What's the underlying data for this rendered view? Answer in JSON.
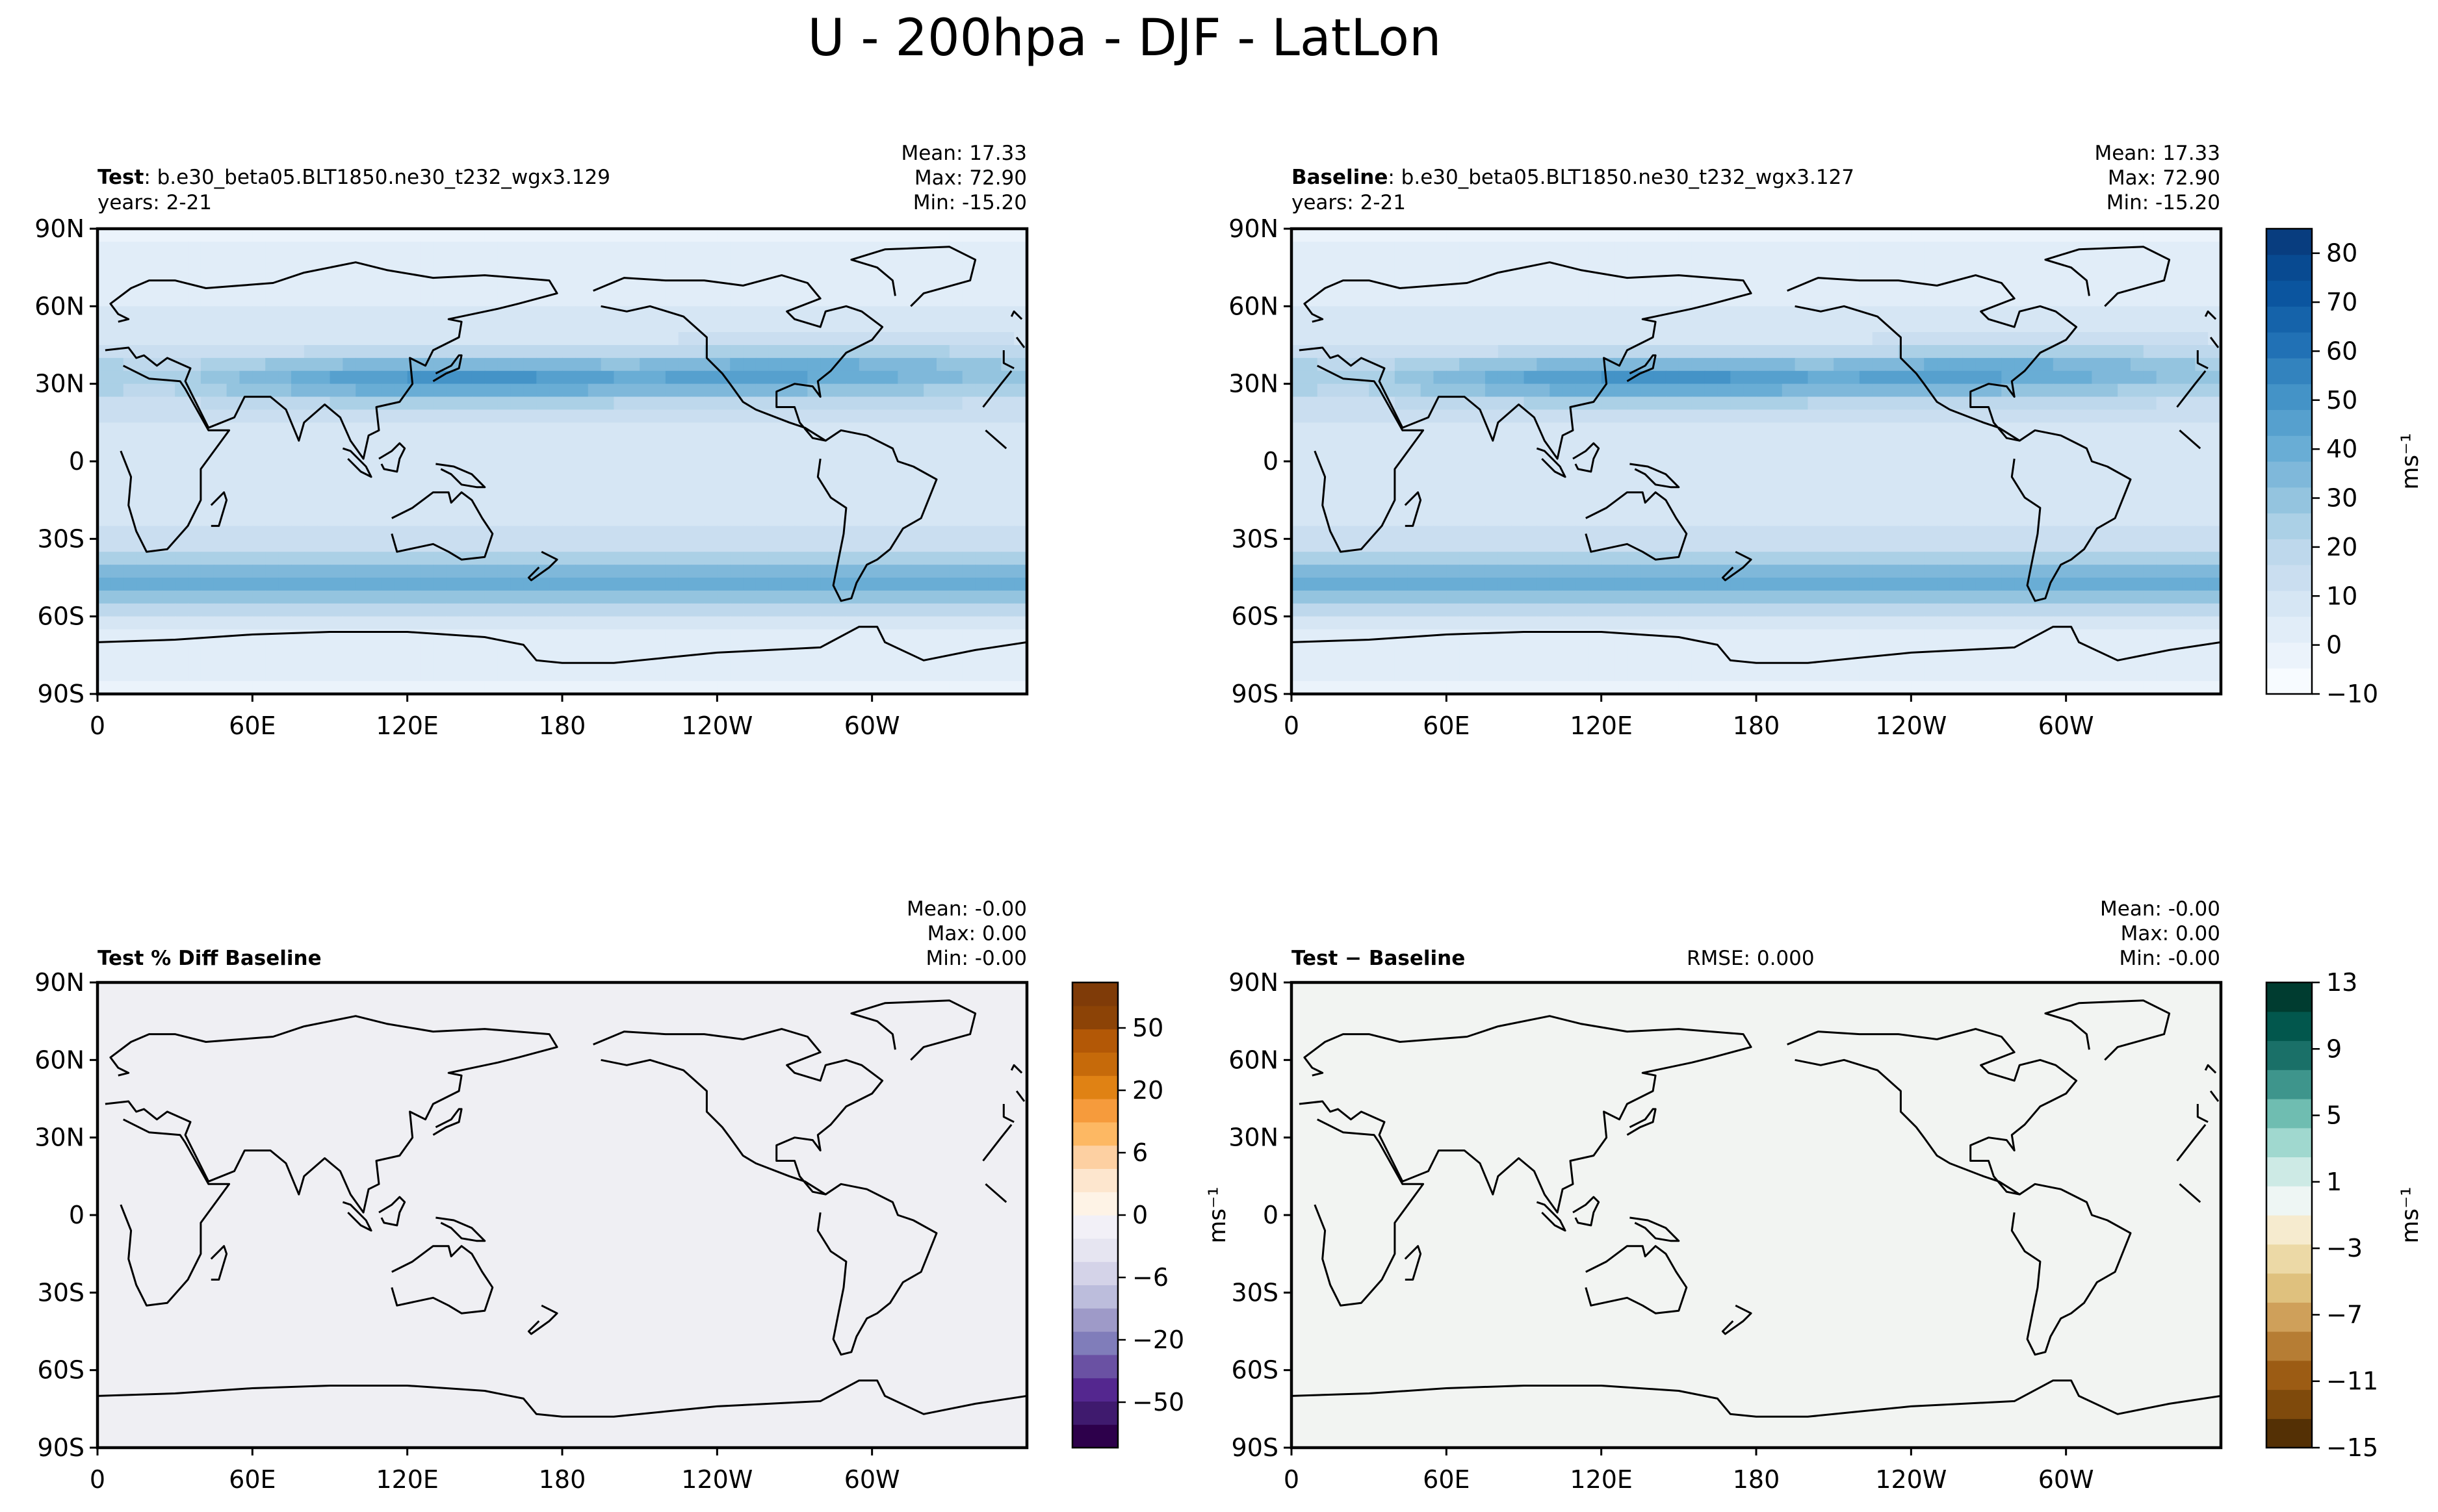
{
  "figure": {
    "title": "U - 200hpa - DJF - LatLon"
  },
  "chart_data": [
    {
      "type": "heatmap",
      "panel": "test",
      "title_bold": "Test",
      "title_rest": ": b.e30_beta05.BLT1850.ne30_t232_wgx3.129",
      "years": "years: 2-21",
      "stats": {
        "mean": "Mean: 17.33",
        "max": "Max: 72.90",
        "min": "Min: -15.20"
      },
      "x_ticks": [
        "0",
        "60E",
        "120E",
        "180",
        "120W",
        "60W"
      ],
      "y_ticks": [
        "90N",
        "60N",
        "30N",
        "0",
        "30S",
        "60S",
        "90S"
      ],
      "fill": "wind",
      "colormap": "Blues"
    },
    {
      "type": "heatmap",
      "panel": "baseline",
      "title_bold": "Baseline",
      "title_rest": ": b.e30_beta05.BLT1850.ne30_t232_wgx3.127",
      "years": "years: 2-21",
      "stats": {
        "mean": "Mean: 17.33",
        "max": "Max: 72.90",
        "min": "Min: -15.20"
      },
      "x_ticks": [
        "0",
        "60E",
        "120E",
        "180",
        "120W",
        "60W"
      ],
      "y_ticks": [
        "90N",
        "60N",
        "30N",
        "0",
        "30S",
        "60S",
        "90S"
      ],
      "fill": "wind",
      "colormap": "Blues",
      "colorbar": {
        "ticks": [
          "80",
          "70",
          "60",
          "50",
          "40",
          "30",
          "20",
          "10",
          "0",
          "−10"
        ],
        "label": "ms⁻¹",
        "colors": [
          "#f7fbff",
          "#ebf3fb",
          "#e1edf8",
          "#d6e6f4",
          "#cadef0",
          "#bed8ec",
          "#abd0e6",
          "#94c4df",
          "#7fb8da",
          "#69add5",
          "#56a0ce",
          "#4493c7",
          "#3383be",
          "#2171b5",
          "#1563aa",
          "#0b559f",
          "#084a91",
          "#083d7f"
        ]
      }
    },
    {
      "type": "heatmap",
      "panel": "pct-diff",
      "title_bold": "Test % Diff Baseline",
      "stats": {
        "mean": "Mean: -0.00",
        "max": "Max:  0.00",
        "min": "Min: -0.00"
      },
      "x_ticks": [
        "0",
        "60E",
        "120E",
        "180",
        "120W",
        "60W"
      ],
      "y_ticks": [
        "90N",
        "60N",
        "30N",
        "0",
        "30S",
        "60S",
        "90S"
      ],
      "fill_color": "#efeff3",
      "colormap": "PuOr_r",
      "colorbar": {
        "ticks": [
          "50",
          "20",
          "6",
          "0",
          "−6",
          "−20",
          "−50"
        ],
        "label": "ms⁻¹",
        "colors": [
          "#2d004b",
          "#3f1a6e",
          "#54278f",
          "#6a51a3",
          "#807dba",
          "#9e9ac8",
          "#bcbddc",
          "#d4d3e8",
          "#e6e5f1",
          "#f2f0f7",
          "#fef3e6",
          "#fde6ce",
          "#fdd0a2",
          "#fdb863",
          "#f69b3c",
          "#e08214",
          "#c66a0a",
          "#b35806",
          "#8c4306",
          "#7f3b08"
        ]
      }
    },
    {
      "type": "heatmap",
      "panel": "difference",
      "title_bold": "Test − Baseline",
      "rmse": "RMSE: 0.000",
      "stats": {
        "mean": "Mean: -0.00",
        "max": "Max:  0.00",
        "min": "Min: -0.00"
      },
      "x_ticks": [
        "0",
        "60E",
        "120E",
        "180",
        "120W",
        "60W"
      ],
      "y_ticks": [
        "90N",
        "60N",
        "30N",
        "0",
        "30S",
        "60S",
        "90S"
      ],
      "fill_color": "#f2f4f2",
      "colormap": "BrBG",
      "colorbar": {
        "ticks": [
          "13",
          "9",
          "5",
          "1",
          "−3",
          "−7",
          "−11",
          "−15"
        ],
        "label": "ms⁻¹",
        "colors": [
          "#543005",
          "#7f4a0c",
          "#9c5c14",
          "#b67d34",
          "#cfa05a",
          "#dfc17e",
          "#ecd9a6",
          "#f6ebcf",
          "#eef6f4",
          "#cdeae5",
          "#a0d8cf",
          "#6fbdb1",
          "#3e958c",
          "#1a7068",
          "#02574d",
          "#003c30"
        ]
      }
    }
  ]
}
